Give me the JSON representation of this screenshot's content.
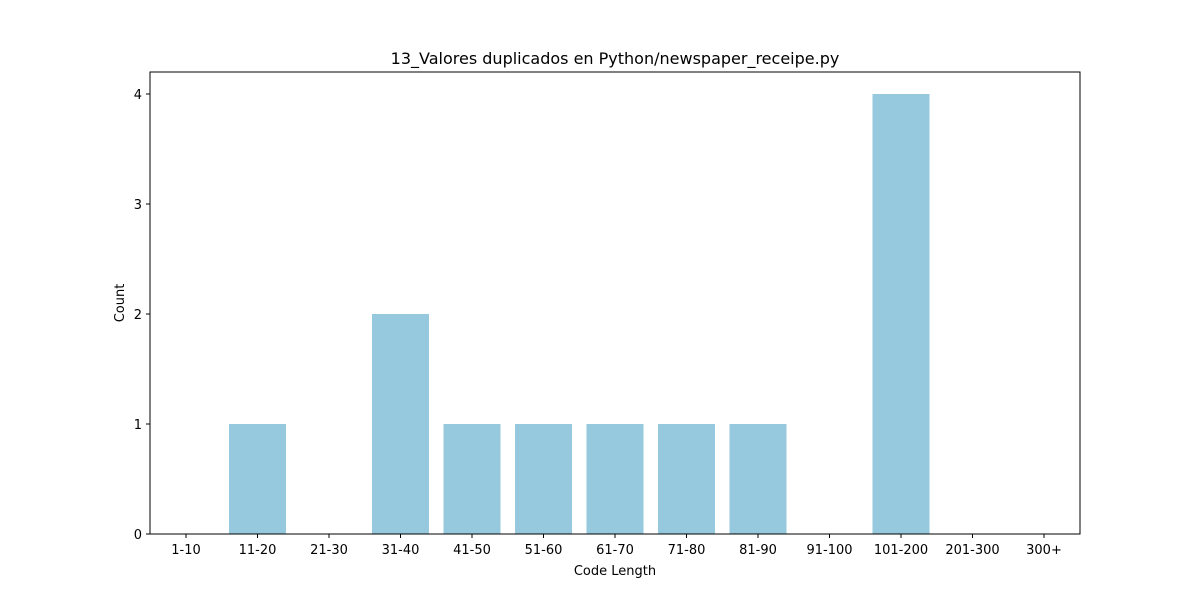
{
  "chart_data": {
    "type": "bar",
    "title": "13_Valores duplicados en Python/newspaper_receipe.py",
    "xlabel": "Code Length",
    "ylabel": "Count",
    "categories": [
      "1-10",
      "11-20",
      "21-30",
      "31-40",
      "41-50",
      "51-60",
      "61-70",
      "71-80",
      "81-90",
      "91-100",
      "101-200",
      "201-300",
      "300+"
    ],
    "values": [
      0,
      1,
      0,
      2,
      1,
      1,
      1,
      1,
      1,
      0,
      4,
      0,
      0
    ],
    "yticks": [
      "0",
      "1",
      "2",
      "3",
      "4"
    ],
    "ylim": [
      0,
      4.2
    ],
    "bar_color": "#96c9dd",
    "grid": false,
    "legend": false
  }
}
